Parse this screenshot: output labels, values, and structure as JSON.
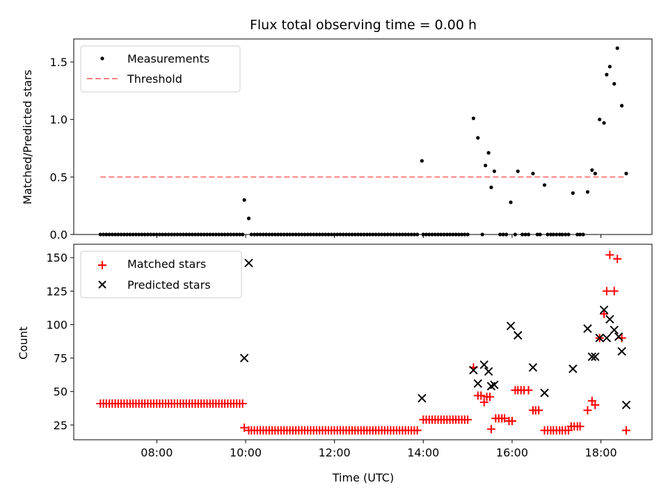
{
  "chart_data": {
    "type": "scatter",
    "title": "Flux total observing time = 0.00 h",
    "xlabel": "Time (UTC)",
    "x_unit": "hours (UTC)",
    "xlim": [
      6.13,
      19.15
    ],
    "xticks": [
      8,
      10,
      12,
      14,
      16,
      18
    ],
    "xtick_labels": [
      "08:00",
      "10:00",
      "12:00",
      "14:00",
      "16:00",
      "18:00"
    ],
    "panels": [
      {
        "ylabel": "Matched/Predicted stars",
        "ylim": [
          0,
          1.7
        ],
        "yticks": [
          0.0,
          0.5,
          1.0,
          1.5
        ],
        "ytick_labels": [
          "0.0",
          "0.5",
          "1.0",
          "1.5"
        ],
        "legend": {
          "placement": "upper left",
          "entries": [
            "Measurements",
            "Threshold"
          ]
        },
        "series": [
          {
            "name": "Measurements",
            "marker": "dot",
            "color": "#000000",
            "zero_runs": [
              {
                "from": 6.73,
                "to": 9.93,
                "step": 0.0667
              },
              {
                "from": 10.13,
                "to": 13.87,
                "step": 0.0667
              },
              {
                "from": 14.0,
                "to": 15.0,
                "step": 0.0667
              }
            ],
            "points": [
              [
                9.97,
                0.3
              ],
              [
                10.07,
                0.14
              ],
              [
                13.97,
                0.64
              ],
              [
                15.13,
                1.01
              ],
              [
                15.23,
                0.84
              ],
              [
                15.33,
                0.0
              ],
              [
                15.4,
                0.6
              ],
              [
                15.47,
                0.71
              ],
              [
                15.53,
                0.41
              ],
              [
                15.6,
                0.55
              ],
              [
                15.73,
                0.0
              ],
              [
                15.8,
                0.0
              ],
              [
                15.87,
                0.0
              ],
              [
                15.97,
                0.28
              ],
              [
                16.07,
                0.0
              ],
              [
                16.13,
                0.55
              ],
              [
                16.23,
                0.0
              ],
              [
                16.3,
                0.0
              ],
              [
                16.37,
                0.0
              ],
              [
                16.47,
                0.53
              ],
              [
                16.57,
                0.0
              ],
              [
                16.63,
                0.0
              ],
              [
                16.73,
                0.43
              ],
              [
                16.8,
                0.0
              ],
              [
                16.87,
                0.0
              ],
              [
                16.93,
                0.0
              ],
              [
                17.0,
                0.0
              ],
              [
                17.07,
                0.0
              ],
              [
                17.13,
                0.0
              ],
              [
                17.2,
                0.0
              ],
              [
                17.27,
                0.0
              ],
              [
                17.37,
                0.36
              ],
              [
                17.47,
                0.0
              ],
              [
                17.53,
                0.0
              ],
              [
                17.6,
                0.0
              ],
              [
                17.7,
                0.37
              ],
              [
                17.8,
                0.56
              ],
              [
                17.87,
                0.53
              ],
              [
                17.97,
                1.0
              ],
              [
                18.07,
                0.97
              ],
              [
                18.13,
                1.39
              ],
              [
                18.2,
                1.46
              ],
              [
                18.3,
                1.31
              ],
              [
                18.37,
                1.62
              ],
              [
                18.47,
                1.12
              ],
              [
                18.57,
                0.53
              ]
            ]
          },
          {
            "name": "Threshold",
            "line": "dashed",
            "color": "#ff7f7f",
            "x": [
              6.73,
              18.57
            ],
            "y": [
              0.5,
              0.5
            ]
          }
        ]
      },
      {
        "ylabel": "Count",
        "ylim": [
          14,
          160
        ],
        "yticks": [
          25,
          50,
          75,
          100,
          125,
          150
        ],
        "ytick_labels": [
          "25",
          "50",
          "75",
          "100",
          "125",
          "150"
        ],
        "legend": {
          "placement": "upper left",
          "entries": [
            "Matched stars",
            "Predicted stars"
          ]
        },
        "series": [
          {
            "name": "Matched stars",
            "marker": "plus",
            "color": "#ff0000",
            "runs": [
              {
                "from": 6.73,
                "to": 9.93,
                "step": 0.0667,
                "y": 41
              },
              {
                "from": 10.13,
                "to": 13.87,
                "step": 0.0667,
                "y": 21
              },
              {
                "from": 14.0,
                "to": 15.0,
                "step": 0.0667,
                "y": 29
              }
            ],
            "points": [
              [
                9.97,
                23
              ],
              [
                10.07,
                21
              ],
              [
                15.13,
                68
              ],
              [
                15.23,
                47
              ],
              [
                15.3,
                47
              ],
              [
                15.37,
                42
              ],
              [
                15.43,
                46
              ],
              [
                15.5,
                46
              ],
              [
                15.53,
                22
              ],
              [
                15.63,
                30
              ],
              [
                15.7,
                30
              ],
              [
                15.77,
                30
              ],
              [
                15.83,
                30
              ],
              [
                15.93,
                28
              ],
              [
                16.0,
                28
              ],
              [
                16.07,
                51
              ],
              [
                16.13,
                51
              ],
              [
                16.2,
                51
              ],
              [
                16.27,
                51
              ],
              [
                16.37,
                51
              ],
              [
                16.47,
                36
              ],
              [
                16.53,
                36
              ],
              [
                16.6,
                36
              ],
              [
                16.73,
                21
              ],
              [
                16.8,
                21
              ],
              [
                16.87,
                21
              ],
              [
                16.93,
                21
              ],
              [
                17.0,
                21
              ],
              [
                17.07,
                21
              ],
              [
                17.13,
                21
              ],
              [
                17.2,
                21
              ],
              [
                17.27,
                21
              ],
              [
                17.33,
                24
              ],
              [
                17.4,
                24
              ],
              [
                17.47,
                24
              ],
              [
                17.53,
                24
              ],
              [
                17.7,
                36
              ],
              [
                17.8,
                43
              ],
              [
                17.87,
                40
              ],
              [
                17.97,
                90
              ],
              [
                18.07,
                108
              ],
              [
                18.13,
                125
              ],
              [
                18.2,
                152
              ],
              [
                18.3,
                125
              ],
              [
                18.37,
                149
              ],
              [
                18.47,
                90
              ],
              [
                18.57,
                21
              ]
            ]
          },
          {
            "name": "Predicted stars",
            "marker": "x",
            "color": "#000000",
            "points": [
              [
                9.97,
                75
              ],
              [
                10.07,
                146
              ],
              [
                13.97,
                45
              ],
              [
                15.13,
                66
              ],
              [
                15.23,
                56
              ],
              [
                15.37,
                70
              ],
              [
                15.47,
                65
              ],
              [
                15.53,
                54
              ],
              [
                15.6,
                55
              ],
              [
                15.97,
                99
              ],
              [
                16.13,
                92
              ],
              [
                16.47,
                68
              ],
              [
                16.73,
                49
              ],
              [
                17.37,
                67
              ],
              [
                17.7,
                97
              ],
              [
                17.8,
                76
              ],
              [
                17.87,
                76
              ],
              [
                17.97,
                90
              ],
              [
                18.07,
                111
              ],
              [
                18.13,
                90
              ],
              [
                18.2,
                104
              ],
              [
                18.3,
                96
              ],
              [
                18.4,
                91
              ],
              [
                18.47,
                80
              ],
              [
                18.57,
                40
              ]
            ]
          }
        ]
      }
    ]
  }
}
